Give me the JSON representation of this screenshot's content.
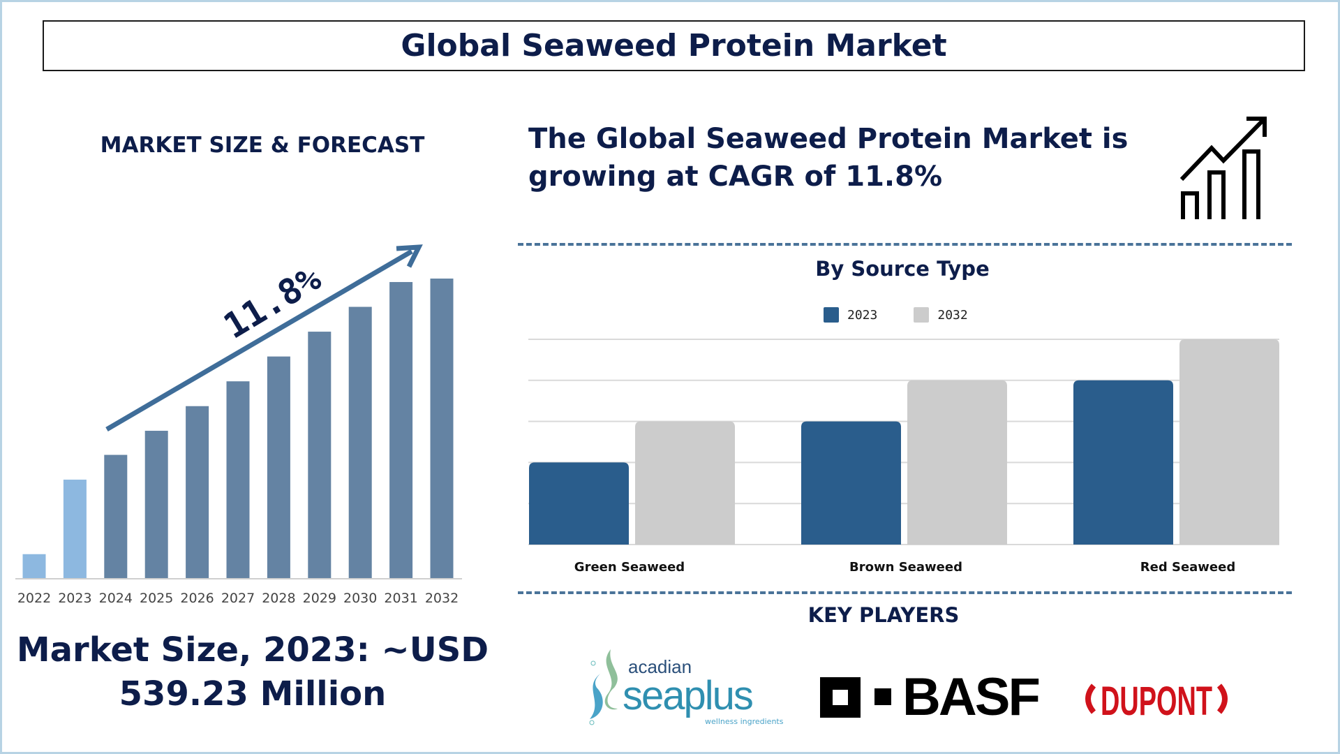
{
  "header": {
    "title": "Global Seaweed Protein Market"
  },
  "left_panel": {
    "section_title": "MARKET SIZE & FORECAST",
    "cagr_label": "11.8%",
    "market_size_line1": "Market Size, 2023: ~USD",
    "market_size_line2": "539.23 Million"
  },
  "right_panel": {
    "headline_line1": "The Global Seaweed Protein Market is",
    "headline_line2": "growing at CAGR of 11.8%",
    "icon": "growth-chart-icon",
    "key_players_title": "KEY PLAYERS",
    "key_players": [
      "acadian seaplus",
      "BASF",
      "DUPONT"
    ],
    "acadian_tagline": "wellness ingredients"
  },
  "colors": {
    "navy": "#0d1d4a",
    "bar": "#6483a3",
    "bar_highlight": "#8db8e0",
    "arrow": "#3f6d99",
    "series_2023": "#2a5d8c",
    "series_2032": "#cccccc"
  },
  "chart_data": [
    {
      "type": "bar",
      "title": "",
      "categories": [
        "2022",
        "2023",
        "2024",
        "2025",
        "2026",
        "2027",
        "2028",
        "2029",
        "2030",
        "2031",
        "2032"
      ],
      "values": [
        131,
        539.23,
        675,
        807,
        942,
        1078,
        1214,
        1350,
        1486,
        1622,
        1641
      ],
      "highlight": [
        "2022",
        "2023"
      ],
      "grid": false,
      "annotation": "11.8%"
    },
    {
      "type": "bar",
      "title": "By Source Type",
      "categories": [
        "Green Seaweed",
        "Brown Seaweed",
        "Red Seaweed"
      ],
      "series": [
        {
          "name": "2023",
          "values": [
            2,
            3,
            4
          ]
        },
        {
          "name": "2032",
          "values": [
            3,
            4,
            5
          ]
        }
      ],
      "ylim": [
        0,
        5
      ],
      "grid": true,
      "legend": "top"
    }
  ]
}
